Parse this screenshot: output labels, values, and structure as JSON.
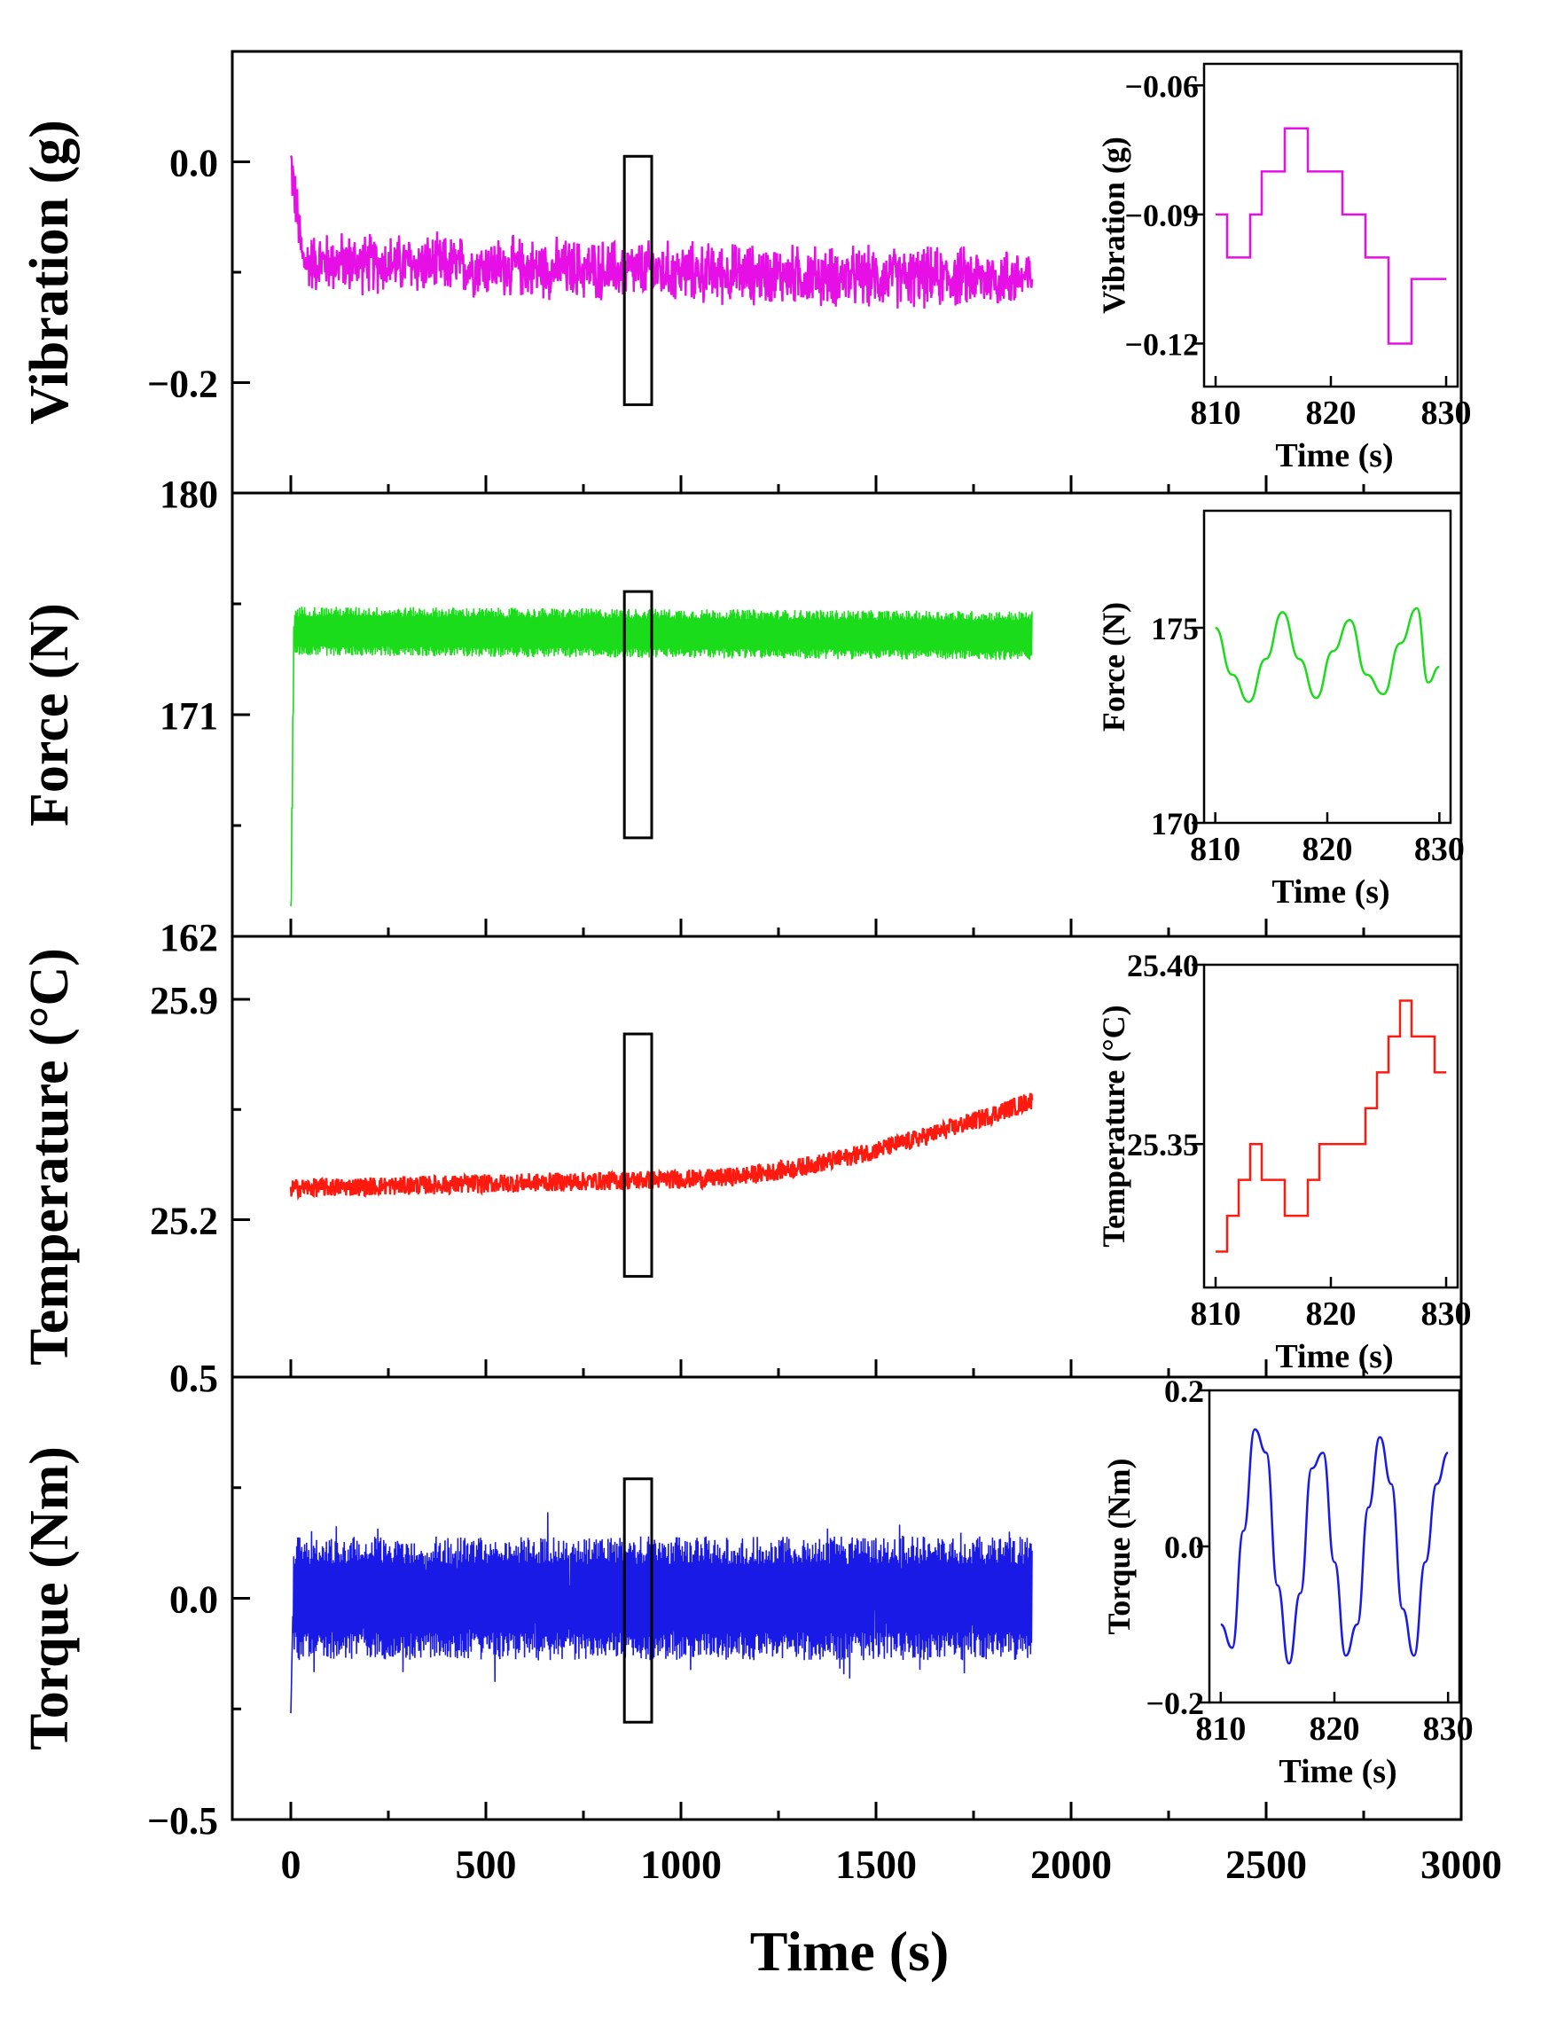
{
  "figure": {
    "xlabel": "Time (s)",
    "xticks": [
      "0",
      "500",
      "1000",
      "1500",
      "2000",
      "2500",
      "3000"
    ]
  },
  "chart_data": [
    {
      "type": "line",
      "name": "vibration",
      "ylabel": "Vibration (g)",
      "color": "#e60fe6",
      "xlim": [
        -150,
        3000
      ],
      "ylim": [
        -0.3,
        0.1
      ],
      "yticks": [
        "0.0",
        "−0.2"
      ],
      "ytick_values": [
        0.0,
        -0.2
      ],
      "series_summary": {
        "start": 0.0,
        "settled_mean": -0.09,
        "end_mean": -0.105,
        "x_end": 1900,
        "noise_amplitude": 0.02
      },
      "highlight": {
        "x_range": [
          855,
          925
        ],
        "y_range": [
          -0.22,
          0.005
        ]
      },
      "inset": {
        "type": "line",
        "xlabel": "Time (s)",
        "ylabel": "Vibration (g)",
        "xlim": [
          809,
          831
        ],
        "ylim": [
          -0.13,
          -0.055
        ],
        "xticks": [
          "810",
          "820",
          "830"
        ],
        "yticks": [
          "−0.06",
          "−0.09",
          "−0.12"
        ],
        "ytick_values": [
          -0.06,
          -0.09,
          -0.12
        ],
        "x": [
          810,
          811,
          812,
          813,
          814,
          815,
          816,
          817,
          818,
          819,
          820,
          821,
          822,
          823,
          824,
          825,
          826,
          827,
          828,
          829,
          830
        ],
        "y": [
          -0.09,
          -0.1,
          -0.1,
          -0.09,
          -0.08,
          -0.08,
          -0.07,
          -0.07,
          -0.08,
          -0.08,
          -0.08,
          -0.09,
          -0.09,
          -0.1,
          -0.1,
          -0.12,
          -0.12,
          -0.105,
          -0.105,
          -0.105,
          -0.105
        ]
      }
    },
    {
      "type": "line",
      "name": "force",
      "ylabel": "Force (N)",
      "color": "#1adc1a",
      "xlim": [
        -150,
        3000
      ],
      "ylim": [
        162,
        180
      ],
      "yticks": [
        "180",
        "171",
        "162"
      ],
      "ytick_values": [
        180,
        171,
        162
      ],
      "series_summary": {
        "start": 162.5,
        "settled_mean": 174.4,
        "end_mean": 174.2,
        "x_end": 1900,
        "noise_amplitude": 1.0
      },
      "highlight": {
        "x_range": [
          855,
          925
        ],
        "y_range": [
          166,
          176
        ]
      },
      "inset": {
        "type": "line",
        "xlabel": "Time (s)",
        "ylabel": "Force (N)",
        "xlim": [
          809,
          831
        ],
        "ylim": [
          170,
          178
        ],
        "xticks": [
          "810",
          "820",
          "830"
        ],
        "yticks": [
          "175",
          "170"
        ],
        "ytick_values": [
          175,
          170
        ],
        "x": [
          810,
          811.5,
          813,
          814.5,
          816,
          817.5,
          819,
          820.5,
          822,
          823.5,
          825,
          826.5,
          828,
          829,
          830
        ],
        "y": [
          175.0,
          173.8,
          173.1,
          174.2,
          175.4,
          174.2,
          173.2,
          174.4,
          175.2,
          173.8,
          173.3,
          174.6,
          175.5,
          173.6,
          174.0
        ]
      }
    },
    {
      "type": "line",
      "name": "temperature",
      "ylabel": "Temperature (°C)",
      "color": "#ff1a10",
      "xlim": [
        -150,
        3000
      ],
      "ylim": [
        24.7,
        26.1
      ],
      "yticks": [
        "25.9",
        "25.2"
      ],
      "ytick_values": [
        25.9,
        25.2
      ],
      "series_summary": {
        "start": 25.3,
        "mid": 25.33,
        "end": 25.58,
        "x_end": 1900,
        "noise_amplitude": 0.03
      },
      "highlight": {
        "x_range": [
          855,
          925
        ],
        "y_range": [
          25.02,
          25.79
        ]
      },
      "inset": {
        "type": "line",
        "xlabel": "Time (s)",
        "ylabel": "Temperature (°C)",
        "xlim": [
          809,
          831
        ],
        "ylim": [
          25.31,
          25.4
        ],
        "xticks": [
          "810",
          "820",
          "830"
        ],
        "yticks": [
          "25.40",
          "25.35"
        ],
        "ytick_values": [
          25.4,
          25.35
        ],
        "x": [
          810,
          811,
          812,
          813,
          814,
          815,
          816,
          817,
          818,
          819,
          820,
          821,
          822,
          823,
          824,
          825,
          826,
          827,
          828,
          829,
          830
        ],
        "y": [
          25.32,
          25.33,
          25.34,
          25.35,
          25.34,
          25.34,
          25.33,
          25.33,
          25.34,
          25.35,
          25.35,
          25.35,
          25.35,
          25.36,
          25.37,
          25.38,
          25.39,
          25.38,
          25.38,
          25.37,
          25.37
        ]
      }
    },
    {
      "type": "line",
      "name": "torque",
      "ylabel": "Torque (Nm)",
      "color": "#1a1ae6",
      "xlim": [
        -150,
        3000
      ],
      "ylim": [
        -0.5,
        0.5
      ],
      "yticks": [
        "0.5",
        "0.0",
        "−0.5"
      ],
      "ytick_values": [
        0.5,
        0.0,
        -0.5
      ],
      "series_summary": {
        "start": -0.26,
        "upper_envelope": 0.14,
        "lower_envelope": -0.14,
        "x_end": 1900
      },
      "highlight": {
        "x_range": [
          855,
          925
        ],
        "y_range": [
          -0.28,
          0.27
        ]
      },
      "inset": {
        "type": "line",
        "xlabel": "Time (s)",
        "ylabel": "Torque (Nm)",
        "xlim": [
          809,
          831
        ],
        "ylim": [
          -0.2,
          0.2
        ],
        "xticks": [
          "810",
          "820",
          "830"
        ],
        "yticks": [
          "0.2",
          "0.0",
          "−0.2"
        ],
        "ytick_values": [
          0.2,
          0.0,
          -0.2
        ],
        "x": [
          810,
          811,
          812,
          813,
          814,
          815,
          816,
          817,
          818,
          819,
          820,
          821,
          822,
          823,
          824,
          825,
          826,
          827,
          828,
          829,
          830
        ],
        "y": [
          -0.1,
          -0.13,
          0.02,
          0.15,
          0.12,
          -0.05,
          -0.15,
          -0.06,
          0.1,
          0.12,
          -0.02,
          -0.14,
          -0.1,
          0.05,
          0.14,
          0.08,
          -0.08,
          -0.14,
          -0.02,
          0.08,
          0.12
        ]
      }
    }
  ]
}
